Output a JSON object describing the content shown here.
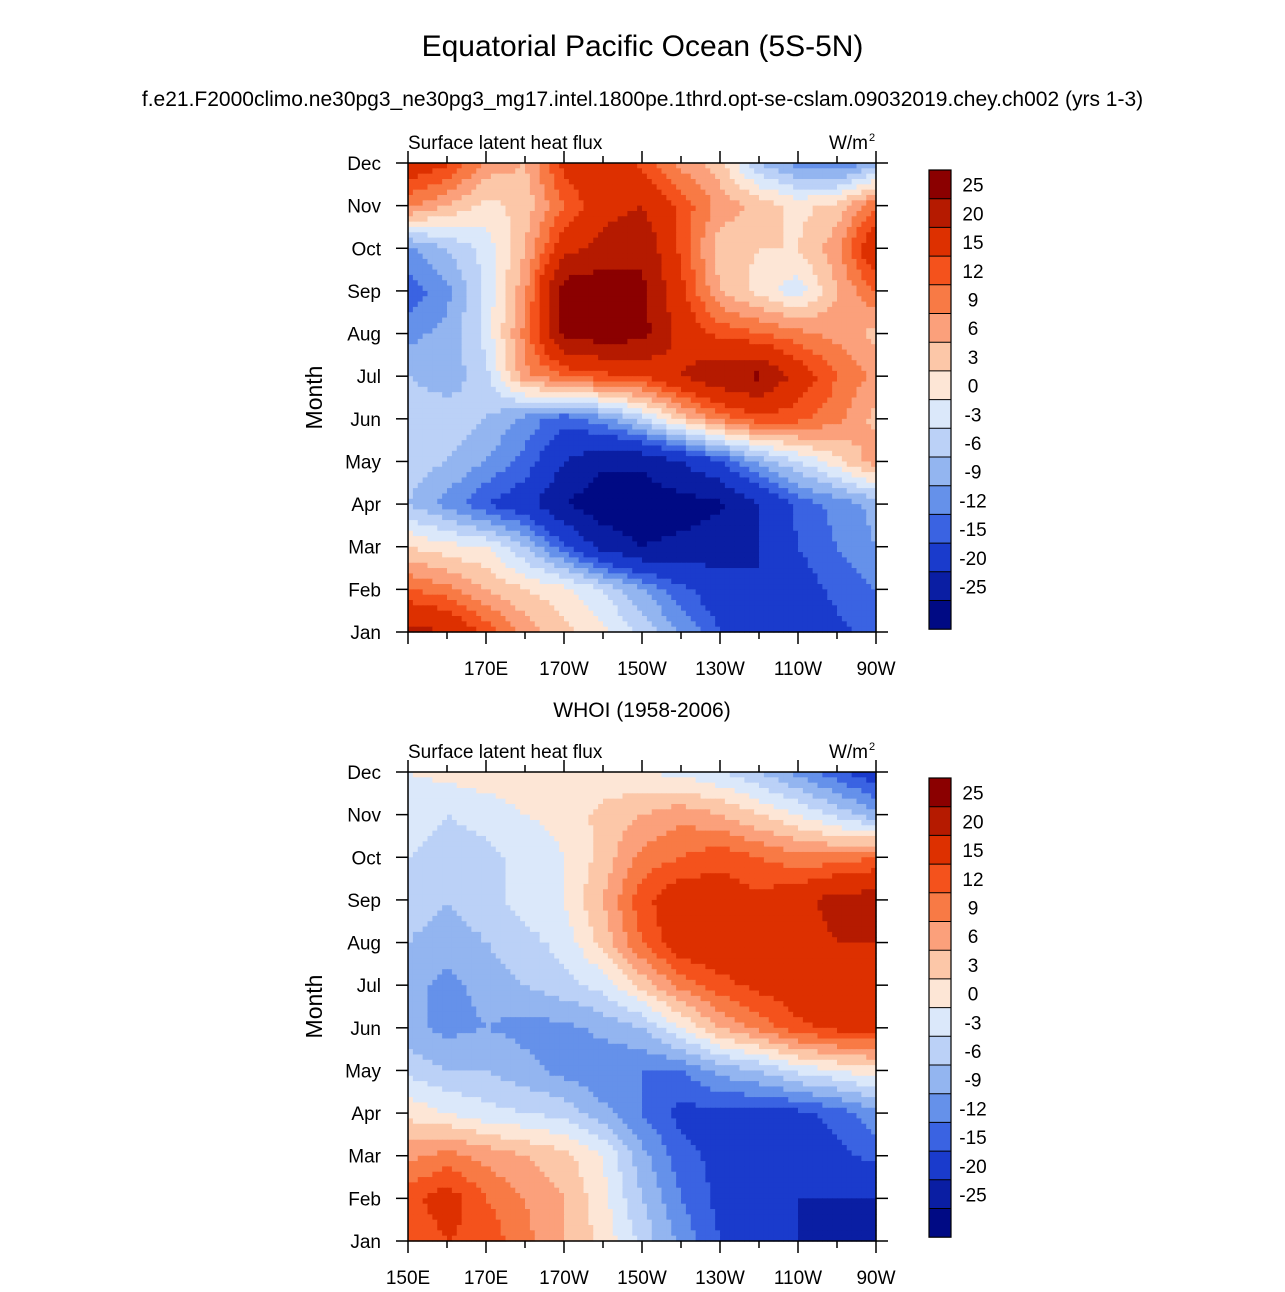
{
  "figure": {
    "title": "Equatorial Pacific Ocean (5S-5N)",
    "subtitle": "f.e21.F2000climo.ne30pg3_ne30pg3_mg17.intel.1800pe.1thrd.opt-se-cslam.09032019.chey.ch002 (yrs 1-3)"
  },
  "colorbar": {
    "levels": [
      "25",
      "20",
      "15",
      "12",
      "9",
      "6",
      "3",
      "0",
      "-3",
      "-6",
      "-9",
      "-12",
      "-15",
      "-20",
      "-25"
    ],
    "colors": [
      "#8b0000",
      "#b51a00",
      "#dd3000",
      "#f4521c",
      "#f87a45",
      "#fba07b",
      "#fcc7a8",
      "#fde6d6",
      "#dbe8fa",
      "#bbd1f7",
      "#93b5f0",
      "#6591ea",
      "#3a63e2",
      "#1a3bcc",
      "#0a1ea3",
      "#000a84"
    ]
  },
  "chart_data": [
    {
      "type": "heatmap",
      "panel_title": "",
      "left_label": "Surface latent heat flux",
      "units_label": "W/m",
      "units_sup": "2",
      "ylabel": "Month",
      "months": [
        "Jan",
        "Feb",
        "Mar",
        "Apr",
        "May",
        "Jun",
        "Jul",
        "Aug",
        "Sep",
        "Oct",
        "Nov",
        "Dec"
      ],
      "lon_ticks": [
        "170E",
        "170W",
        "150W",
        "130W",
        "110W",
        "90W"
      ],
      "xlim": [
        150,
        270
      ],
      "z_grid_lon": [
        150,
        160,
        170,
        180,
        190,
        200,
        210,
        220,
        230,
        240,
        250,
        260,
        270
      ],
      "z": [
        [
          22,
          20,
          14,
          8,
          4,
          1,
          -4,
          -9,
          -15,
          -18,
          -19,
          -16,
          -14
        ],
        [
          12,
          10,
          6,
          3,
          1,
          -3,
          -9,
          -14,
          -18,
          -20,
          -17,
          -14,
          -12
        ],
        [
          3,
          1,
          0,
          -6,
          -14,
          -22,
          -25,
          -24,
          -22,
          -20,
          -15,
          -12,
          -9
        ],
        [
          -6,
          -10,
          -15,
          -18,
          -25,
          -28,
          -28,
          -27,
          -26,
          -20,
          -14,
          -11,
          -8
        ],
        [
          -4,
          -6,
          -9,
          -13,
          -20,
          -24,
          -24,
          -20,
          -15,
          -8,
          -3,
          2,
          8
        ],
        [
          -3,
          -4,
          -6,
          -10,
          -14,
          -10,
          -4,
          4,
          10,
          14,
          13,
          10,
          5
        ],
        [
          -6,
          -8,
          -4,
          8,
          12,
          14,
          15,
          20,
          24,
          26,
          18,
          12,
          8
        ],
        [
          -10,
          -8,
          -2,
          10,
          26,
          28,
          27,
          18,
          14,
          12,
          10,
          8,
          5
        ],
        [
          -14,
          -10,
          -2,
          8,
          28,
          28,
          26,
          16,
          6,
          2,
          -2,
          6,
          12
        ],
        [
          -10,
          -6,
          -2,
          6,
          18,
          22,
          24,
          14,
          4,
          3,
          3,
          8,
          20
        ],
        [
          10,
          6,
          2,
          4,
          12,
          18,
          20,
          14,
          8,
          5,
          2,
          4,
          12
        ],
        [
          18,
          16,
          8,
          6,
          16,
          20,
          14,
          8,
          4,
          -6,
          -10,
          -12,
          -8
        ]
      ]
    },
    {
      "type": "heatmap",
      "panel_title": "WHOI (1958-2006)",
      "left_label": "Surface latent heat flux",
      "units_label": "W/m",
      "units_sup": "2",
      "ylabel": "Month",
      "months": [
        "Jan",
        "Feb",
        "Mar",
        "Apr",
        "May",
        "Jun",
        "Jul",
        "Aug",
        "Sep",
        "Oct",
        "Nov",
        "Dec"
      ],
      "lon_ticks": [
        "150E",
        "170E",
        "170W",
        "150W",
        "130W",
        "110W",
        "90W"
      ],
      "xlim": [
        150,
        270
      ],
      "z_grid_lon": [
        150,
        160,
        170,
        180,
        190,
        200,
        210,
        220,
        230,
        240,
        250,
        260,
        270
      ],
      "z": [
        [
          12,
          15,
          14,
          10,
          6,
          2,
          -4,
          -10,
          -15,
          -18,
          -20,
          -22,
          -25
        ],
        [
          14,
          17,
          12,
          9,
          6,
          1,
          -6,
          -12,
          -16,
          -18,
          -20,
          -20,
          -20
        ],
        [
          8,
          10,
          8,
          6,
          4,
          0,
          -8,
          -14,
          -16,
          -16,
          -18,
          -16,
          -14
        ],
        [
          2,
          0,
          -2,
          -3,
          -4,
          -8,
          -12,
          -16,
          -16,
          -16,
          -16,
          -14,
          -10
        ],
        [
          -4,
          -6,
          -6,
          -8,
          -10,
          -12,
          -12,
          -12,
          -8,
          -6,
          -2,
          0,
          2
        ],
        [
          -8,
          -10,
          -9,
          -10,
          -10,
          -8,
          -6,
          0,
          6,
          10,
          14,
          16,
          16
        ],
        [
          -8,
          -10,
          -8,
          -6,
          -4,
          -2,
          4,
          10,
          14,
          16,
          18,
          18,
          18
        ],
        [
          -6,
          -8,
          -6,
          -4,
          -2,
          4,
          12,
          18,
          18,
          16,
          18,
          20,
          20
        ],
        [
          -4,
          -6,
          -4,
          -2,
          0,
          6,
          14,
          18,
          17,
          16,
          18,
          22,
          22
        ],
        [
          -3,
          -4,
          -4,
          -2,
          0,
          4,
          10,
          12,
          14,
          12,
          10,
          10,
          12
        ],
        [
          -2,
          -3,
          -2,
          0,
          1,
          4,
          6,
          8,
          6,
          3,
          0,
          -4,
          -8
        ],
        [
          0,
          1,
          2,
          2,
          1,
          1,
          0,
          -1,
          -3,
          -6,
          -10,
          -14,
          -18
        ]
      ]
    }
  ]
}
